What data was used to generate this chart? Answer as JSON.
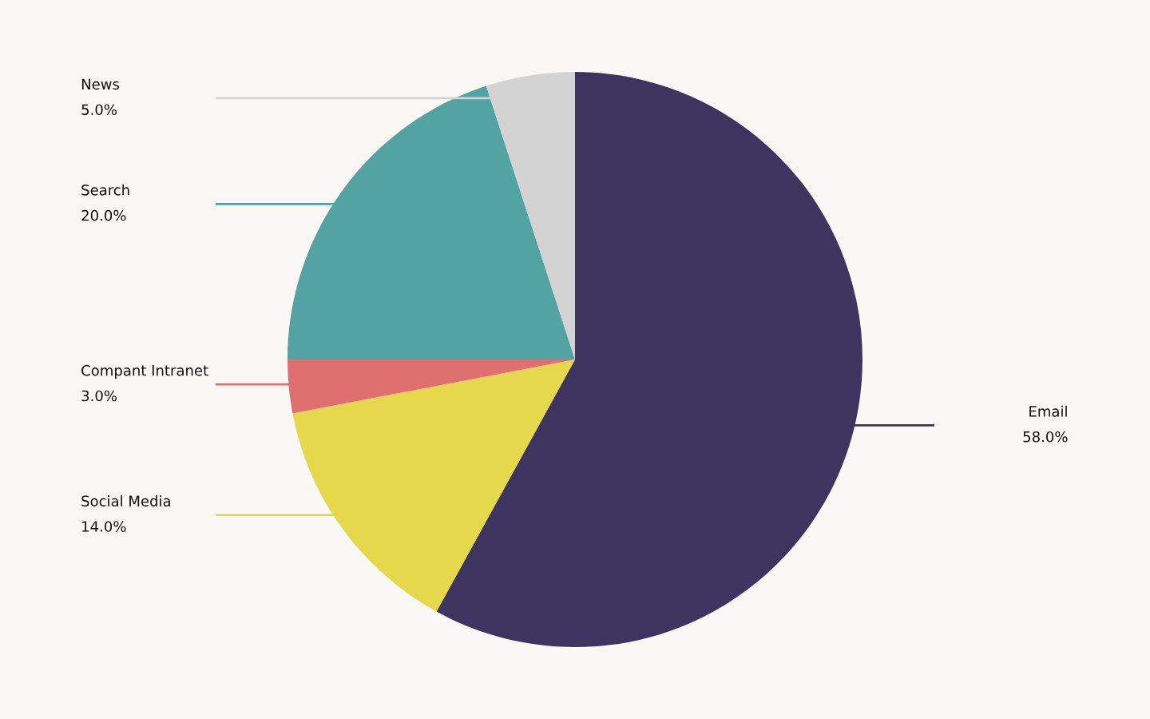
{
  "chart_data": {
    "type": "pie",
    "categories": [
      "Email",
      "Social Media",
      "Compant Intranet",
      "Search",
      "News"
    ],
    "values": [
      58,
      14,
      3,
      20,
      5
    ],
    "value_labels": [
      "58.0%",
      "14.0%",
      "3.0%",
      "20.0%",
      "5.0%"
    ],
    "colors": [
      "#3d3560",
      "#e6d84c",
      "#de716f",
      "#52a3a2",
      "#d3d3d3"
    ]
  }
}
